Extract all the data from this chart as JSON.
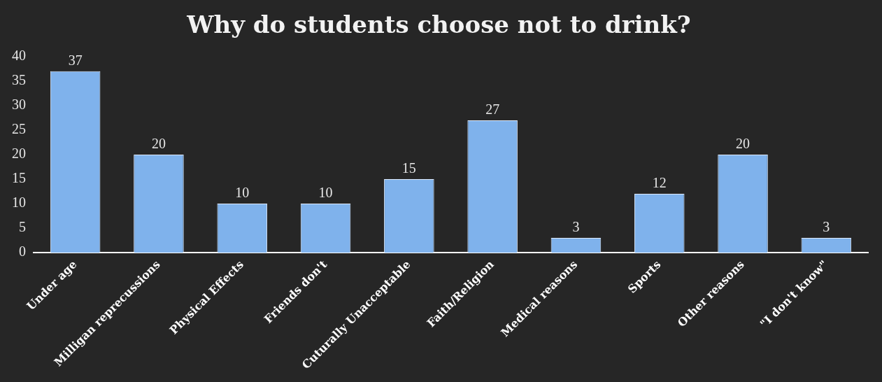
{
  "chart_data": {
    "type": "bar",
    "title": "Why do students choose not to drink?",
    "categories": [
      "Under age",
      "Milligan reprecussions",
      "Physical Effects",
      "Friends don't",
      "Cuturally Unacceptable",
      "Faith/Religion",
      "Medical reasons",
      "Sports",
      "Other reasons",
      "\"I don't know\""
    ],
    "values": [
      37,
      20,
      10,
      10,
      15,
      27,
      3,
      12,
      20,
      3
    ],
    "color": "#7fb2ec",
    "ylim": [
      0,
      40
    ],
    "yticks": [
      0,
      5,
      10,
      15,
      20,
      25,
      30,
      35,
      40
    ],
    "grid": false,
    "legend": false,
    "data_labels": true
  }
}
